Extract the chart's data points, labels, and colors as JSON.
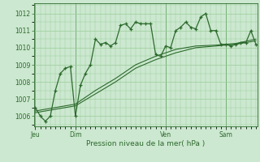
{
  "background_color": "#cce8d0",
  "plot_bg_color": "#cce8d0",
  "grid_color": "#99cc99",
  "line_color": "#2d6a2d",
  "title": "Pression niveau de la mer( hPa )",
  "ylabel_ticks": [
    1006,
    1007,
    1008,
    1009,
    1010,
    1011,
    1012
  ],
  "ylim": [
    1005.4,
    1012.6
  ],
  "xlim": [
    -0.3,
    44.3
  ],
  "day_labels": [
    "Jeu",
    "Dim",
    "Ven",
    "Sam"
  ],
  "day_positions": [
    0,
    8,
    26,
    38
  ],
  "series1_x": [
    0,
    1,
    2,
    3,
    4,
    5,
    6,
    7,
    8,
    9,
    10,
    11,
    12,
    13,
    14,
    15,
    16,
    17,
    18,
    19,
    20,
    21,
    22,
    23,
    24,
    25,
    26,
    27,
    28,
    29,
    30,
    31,
    32,
    33,
    34,
    35,
    36,
    37,
    38,
    39,
    40,
    41,
    42,
    43,
    44
  ],
  "series1_y": [
    1006.5,
    1006.0,
    1005.7,
    1006.0,
    1007.5,
    1008.5,
    1008.8,
    1008.9,
    1006.0,
    1007.8,
    1008.5,
    1009.0,
    1010.5,
    1010.2,
    1010.3,
    1010.1,
    1010.3,
    1011.3,
    1011.4,
    1011.1,
    1011.5,
    1011.4,
    1011.4,
    1011.4,
    1009.6,
    1009.5,
    1010.1,
    1010.0,
    1011.0,
    1011.2,
    1011.5,
    1011.2,
    1011.1,
    1011.8,
    1012.0,
    1011.0,
    1011.0,
    1010.2,
    1010.2,
    1010.1,
    1010.2,
    1010.3,
    1010.3,
    1011.0,
    1010.2
  ],
  "series2_x": [
    0,
    4,
    8,
    12,
    16,
    20,
    24,
    28,
    32,
    36,
    40,
    44
  ],
  "series2_y": [
    1006.2,
    1006.4,
    1006.6,
    1007.3,
    1008.0,
    1008.8,
    1009.3,
    1009.7,
    1010.0,
    1010.1,
    1010.2,
    1010.4
  ],
  "series3_x": [
    0,
    4,
    8,
    12,
    16,
    20,
    24,
    28,
    32,
    36,
    40,
    44
  ],
  "series3_y": [
    1006.3,
    1006.5,
    1006.7,
    1007.5,
    1008.2,
    1009.0,
    1009.5,
    1009.9,
    1010.1,
    1010.15,
    1010.25,
    1010.5
  ]
}
